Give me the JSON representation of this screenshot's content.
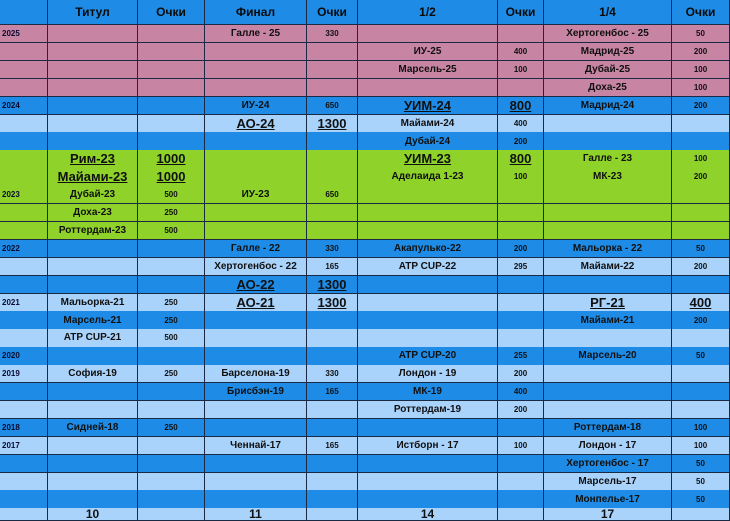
{
  "colors": {
    "header": "#1e8ce6",
    "dark_blue": "#1e8ce6",
    "light_blue": "#a9d3fb",
    "pink": "#c785a3",
    "green": "#8fd32a"
  },
  "headers": [
    "",
    "Титул",
    "Очки",
    "Финал",
    "Очки",
    "1/2",
    "Очки",
    "1/4",
    "Очки"
  ],
  "rows": [
    {
      "color": "pink",
      "cells": [
        "2025",
        "",
        "",
        "Галле - 25",
        "330",
        "",
        "",
        "Хертогенбос - 25",
        "50"
      ]
    },
    {
      "color": "pink",
      "cells": [
        "",
        "",
        "",
        "",
        "",
        "ИУ-25",
        "400",
        "Мадрид-25",
        "200"
      ]
    },
    {
      "color": "pink",
      "cells": [
        "",
        "",
        "",
        "",
        "",
        "Марсель-25",
        "100",
        "Дубай-25",
        "100"
      ]
    },
    {
      "color": "pink",
      "cells": [
        "",
        "",
        "",
        "",
        "",
        "",
        "",
        "Доха-25",
        "100"
      ]
    },
    {
      "color": "dark_blue",
      "cells": [
        "2024",
        "",
        "",
        "ИУ-24",
        "650",
        "УИМ-24",
        "800",
        "Мадрид-24",
        "200"
      ]
    },
    {
      "color": "light_blue",
      "cells": [
        "",
        "",
        "",
        "АО-24",
        "1300",
        "Майами-24",
        "400",
        "",
        ""
      ]
    },
    {
      "color": "dark_blue",
      "cells": [
        "",
        "",
        "",
        "",
        "",
        "Дубай-24",
        "200",
        "",
        ""
      ]
    },
    {
      "color": "green",
      "cells": [
        "",
        "Рим-23",
        "1000",
        "",
        "",
        "УИМ-23",
        "800",
        "Галле - 23",
        "100"
      ]
    },
    {
      "color": "green",
      "cells": [
        "",
        "Майами-23",
        "1000",
        "",
        "",
        "Аделаида 1-23",
        "100",
        "МК-23",
        "200"
      ]
    },
    {
      "color": "green",
      "cells": [
        "2023",
        "Дубай-23",
        "500",
        "ИУ-23",
        "650",
        "",
        "",
        "",
        ""
      ]
    },
    {
      "color": "green",
      "cells": [
        "",
        "Доха-23",
        "250",
        "",
        "",
        "",
        "",
        "",
        ""
      ]
    },
    {
      "color": "green",
      "cells": [
        "",
        "Роттердам-23",
        "500",
        "",
        "",
        "",
        "",
        "",
        ""
      ]
    },
    {
      "color": "dark_blue",
      "cells": [
        "2022",
        "",
        "",
        "Галле - 22",
        "330",
        "Акапулько-22",
        "200",
        "Мальорка - 22",
        "50"
      ]
    },
    {
      "color": "light_blue",
      "cells": [
        "",
        "",
        "",
        "Хертогенбос - 22",
        "165",
        "ATP CUP-22",
        "295",
        "Майами-22",
        "200"
      ]
    },
    {
      "color": "dark_blue",
      "cells": [
        "",
        "",
        "",
        "АО-22",
        "1300",
        "",
        "",
        "",
        ""
      ]
    },
    {
      "color": "light_blue",
      "cells": [
        "2021",
        "Мальорка-21",
        "250",
        "АО-21",
        "1300",
        "",
        "",
        "РГ-21",
        "400"
      ]
    },
    {
      "color": "dark_blue",
      "cells": [
        "",
        "Марсель-21",
        "250",
        "",
        "",
        "",
        "",
        "Майами-21",
        "200"
      ]
    },
    {
      "color": "light_blue",
      "cells": [
        "",
        "ATP CUP-21",
        "500",
        "",
        "",
        "",
        "",
        "",
        ""
      ]
    },
    {
      "color": "dark_blue",
      "cells": [
        "2020",
        "",
        "",
        "",
        "",
        "ATP CUP-20",
        "255",
        "Марсель-20",
        "50"
      ]
    },
    {
      "color": "light_blue",
      "cells": [
        "2019",
        "София-19",
        "250",
        "Барселона-19",
        "330",
        "Лондон - 19",
        "200",
        "",
        ""
      ]
    },
    {
      "color": "dark_blue",
      "cells": [
        "",
        "",
        "",
        "Брисбэн-19",
        "165",
        "МК-19",
        "400",
        "",
        ""
      ]
    },
    {
      "color": "light_blue",
      "cells": [
        "",
        "",
        "",
        "",
        "",
        "Роттердам-19",
        "200",
        "",
        ""
      ]
    },
    {
      "color": "dark_blue",
      "cells": [
        "2018",
        "Сидней-18",
        "250",
        "",
        "",
        "",
        "",
        "Роттердам-18",
        "100"
      ]
    },
    {
      "color": "light_blue",
      "cells": [
        "2017",
        "",
        "",
        "Ченнай-17",
        "165",
        "Истборн - 17",
        "100",
        "Лондон - 17",
        "100"
      ]
    },
    {
      "color": "dark_blue",
      "cells": [
        "",
        "",
        "",
        "",
        "",
        "",
        "",
        "Хертогенбос - 17",
        "50"
      ]
    },
    {
      "color": "light_blue",
      "cells": [
        "",
        "",
        "",
        "",
        "",
        "",
        "",
        "Марсель-17",
        "50"
      ]
    },
    {
      "color": "dark_blue",
      "cells": [
        "",
        "",
        "",
        "",
        "",
        "",
        "",
        "Монпелье-17",
        "50"
      ]
    }
  ],
  "footer": {
    "cells": [
      "",
      "10",
      "",
      "11",
      "",
      "14",
      "",
      "17",
      ""
    ],
    "color": "light_blue"
  }
}
